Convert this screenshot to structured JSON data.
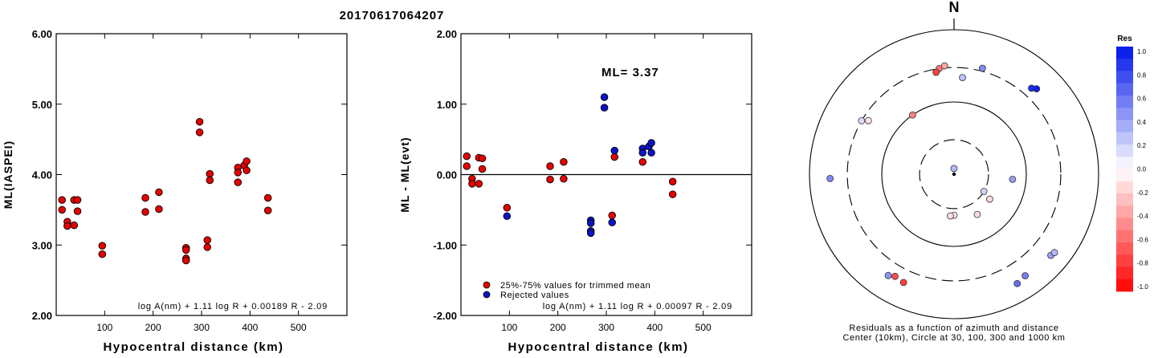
{
  "title": "20170617064207",
  "colors": {
    "red": "#e60000",
    "blue": "#0a14c8",
    "axis": "#000000"
  },
  "chart_data": [
    {
      "type": "scatter",
      "name": "ml-vs-distance",
      "xlabel": "Hypocentral distance (km)",
      "ylabel": "ML(IASPEI)",
      "xlim": [
        0,
        600
      ],
      "ylim": [
        2.0,
        6.0
      ],
      "xticks": [
        100,
        200,
        300,
        400,
        500
      ],
      "xtick_labels": [
        "100",
        "200",
        "300",
        "400",
        "500"
      ],
      "yticks": [
        2.0,
        3.0,
        4.0,
        5.0,
        6.0
      ],
      "ytick_labels": [
        "2.00",
        "3.00",
        "4.00",
        "5.00",
        "6.00"
      ],
      "formula": "log A(nm) + 1.11 log R + 0.00189 R - 2.09",
      "series": [
        {
          "color": "red",
          "points": [
            [
              12,
              3.64
            ],
            [
              12,
              3.5
            ],
            [
              23,
              3.33
            ],
            [
              23,
              3.27
            ],
            [
              37,
              3.64
            ],
            [
              37,
              3.28
            ],
            [
              44,
              3.64
            ],
            [
              44,
              3.48
            ],
            [
              95,
              2.99
            ],
            [
              95,
              2.87
            ],
            [
              184,
              3.67
            ],
            [
              184,
              3.47
            ],
            [
              212,
              3.75
            ],
            [
              212,
              3.51
            ],
            [
              268,
              2.96
            ],
            [
              268,
              2.93
            ],
            [
              268,
              2.81
            ],
            [
              268,
              2.78
            ],
            [
              296,
              4.75
            ],
            [
              296,
              4.6
            ],
            [
              312,
              3.07
            ],
            [
              312,
              2.97
            ],
            [
              317,
              4.01
            ],
            [
              317,
              3.92
            ],
            [
              375,
              4.1
            ],
            [
              375,
              4.03
            ],
            [
              375,
              3.89
            ],
            [
              388,
              4.13
            ],
            [
              393,
              4.19
            ],
            [
              393,
              4.06
            ],
            [
              437,
              3.67
            ],
            [
              437,
              3.49
            ]
          ]
        }
      ]
    },
    {
      "type": "scatter",
      "name": "residual-vs-distance",
      "xlabel": "Hypocentral distance (km)",
      "ylabel": "ML - ML(evt)",
      "xlim": [
        0,
        600
      ],
      "ylim": [
        -2.0,
        2.0
      ],
      "xticks": [
        100,
        200,
        300,
        400,
        500
      ],
      "xtick_labels": [
        "100",
        "200",
        "300",
        "400",
        "500"
      ],
      "yticks": [
        -2.0,
        -1.0,
        0.0,
        1.0,
        2.0
      ],
      "ytick_labels": [
        "-2.00",
        "-1.00",
        "0.00",
        "1.00",
        "2.00"
      ],
      "zero_line": 0,
      "ml_label": "ML= 3.37",
      "legend": [
        "25%-75% values for trimmed mean",
        "Rejected values"
      ],
      "formula": "log A(nm) + 1.11 log R + 0.00097 R - 2.09",
      "series": [
        {
          "color": "red",
          "points": [
            [
              12,
              0.26
            ],
            [
              12,
              0.12
            ],
            [
              23,
              -0.06
            ],
            [
              23,
              -0.13
            ],
            [
              37,
              0.24
            ],
            [
              37,
              -0.13
            ],
            [
              44,
              0.23
            ],
            [
              44,
              0.08
            ],
            [
              95,
              -0.47
            ],
            [
              184,
              0.12
            ],
            [
              184,
              -0.07
            ],
            [
              212,
              0.18
            ],
            [
              212,
              -0.06
            ],
            [
              312,
              -0.58
            ],
            [
              317,
              0.25
            ],
            [
              375,
              0.18
            ],
            [
              437,
              -0.1
            ],
            [
              437,
              -0.28
            ]
          ]
        },
        {
          "color": "blue",
          "points": [
            [
              95,
              -0.59
            ],
            [
              268,
              -0.65
            ],
            [
              268,
              -0.69
            ],
            [
              268,
              -0.8
            ],
            [
              268,
              -0.83
            ],
            [
              296,
              1.1
            ],
            [
              296,
              0.95
            ],
            [
              312,
              -0.68
            ],
            [
              317,
              0.34
            ],
            [
              375,
              0.37
            ],
            [
              375,
              0.31
            ],
            [
              388,
              0.4
            ],
            [
              393,
              0.45
            ],
            [
              393,
              0.31
            ]
          ]
        }
      ]
    },
    {
      "type": "polar-scatter",
      "name": "azimuth-residuals",
      "north_label": "N",
      "caption": [
        "Residuals as a function of azimuth and distance",
        "Center (10km), Circle at 30, 100, 300 and 1000 km"
      ],
      "rings_km": [
        30,
        100,
        300,
        1000
      ],
      "ring_styles": [
        "dashed",
        "solid",
        "dashed",
        "solid"
      ],
      "stations": [
        {
          "az": 0,
          "dist": 12,
          "res": 0.3
        },
        {
          "az": 125,
          "dist": 40,
          "res": -0.15
        },
        {
          "az": 150,
          "dist": 44,
          "res": -0.15
        },
        {
          "az": 180,
          "dist": 37,
          "res": -0.1
        },
        {
          "az": 185,
          "dist": 38,
          "res": -0.12
        },
        {
          "az": 120,
          "dist": 30,
          "res": 0.2
        },
        {
          "az": 95,
          "dist": 65,
          "res": 0.4
        },
        {
          "az": 325,
          "dist": 100,
          "res": -0.5
        },
        {
          "az": 352,
          "dist": 300,
          "res": -0.55
        },
        {
          "az": 350,
          "dist": 270,
          "res": -0.75
        },
        {
          "az": 355,
          "dist": 320,
          "res": -0.35
        },
        {
          "az": 5,
          "dist": 220,
          "res": 0.25
        },
        {
          "az": 15,
          "dist": 330,
          "res": 0.5
        },
        {
          "az": 42,
          "dist": 400,
          "res": 0.9
        },
        {
          "az": 44,
          "dist": 440,
          "res": 0.95
        },
        {
          "az": 302,
          "dist": 250,
          "res": -0.1
        },
        {
          "az": 300,
          "dist": 300,
          "res": 0.15
        },
        {
          "az": 268,
          "dist": 520,
          "res": 0.5
        },
        {
          "az": 205,
          "dist": 450,
          "res": -0.75
        },
        {
          "az": 210,
          "dist": 430,
          "res": -0.7
        },
        {
          "az": 213,
          "dist": 470,
          "res": 0.45
        },
        {
          "az": 130,
          "dist": 560,
          "res": 0.4
        },
        {
          "az": 128,
          "dist": 580,
          "res": 0.3
        },
        {
          "az": 145,
          "dist": 520,
          "res": 0.55
        },
        {
          "az": 150,
          "dist": 560,
          "res": 0.6
        }
      ]
    },
    {
      "type": "colorbar",
      "name": "res-colorbar",
      "title": "Res",
      "ticks": [
        "1.0",
        "0.8",
        "0.6",
        "0.4",
        "0.2",
        "0.0",
        "-0.2",
        "-0.4",
        "-0.6",
        "-0.8",
        "-1.0"
      ],
      "range": [
        -1.0,
        1.0
      ]
    }
  ]
}
